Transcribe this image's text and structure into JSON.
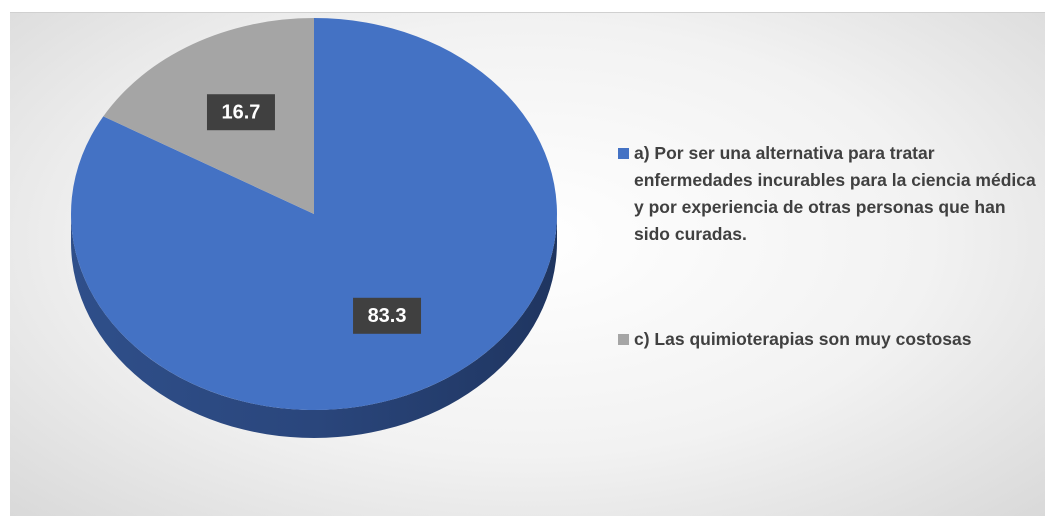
{
  "chart_data": {
    "type": "pie",
    "categories": [
      "a) Por ser una alternativa para tratar enfermedades incurables para la ciencia médica y por experiencia de otras personas que han sido curadas.",
      "c) Las quimioterapias son muy costosas"
    ],
    "values": [
      83.3,
      16.7
    ],
    "colors": [
      "#4472c4",
      "#a5a5a5"
    ],
    "legend": "right"
  }
}
